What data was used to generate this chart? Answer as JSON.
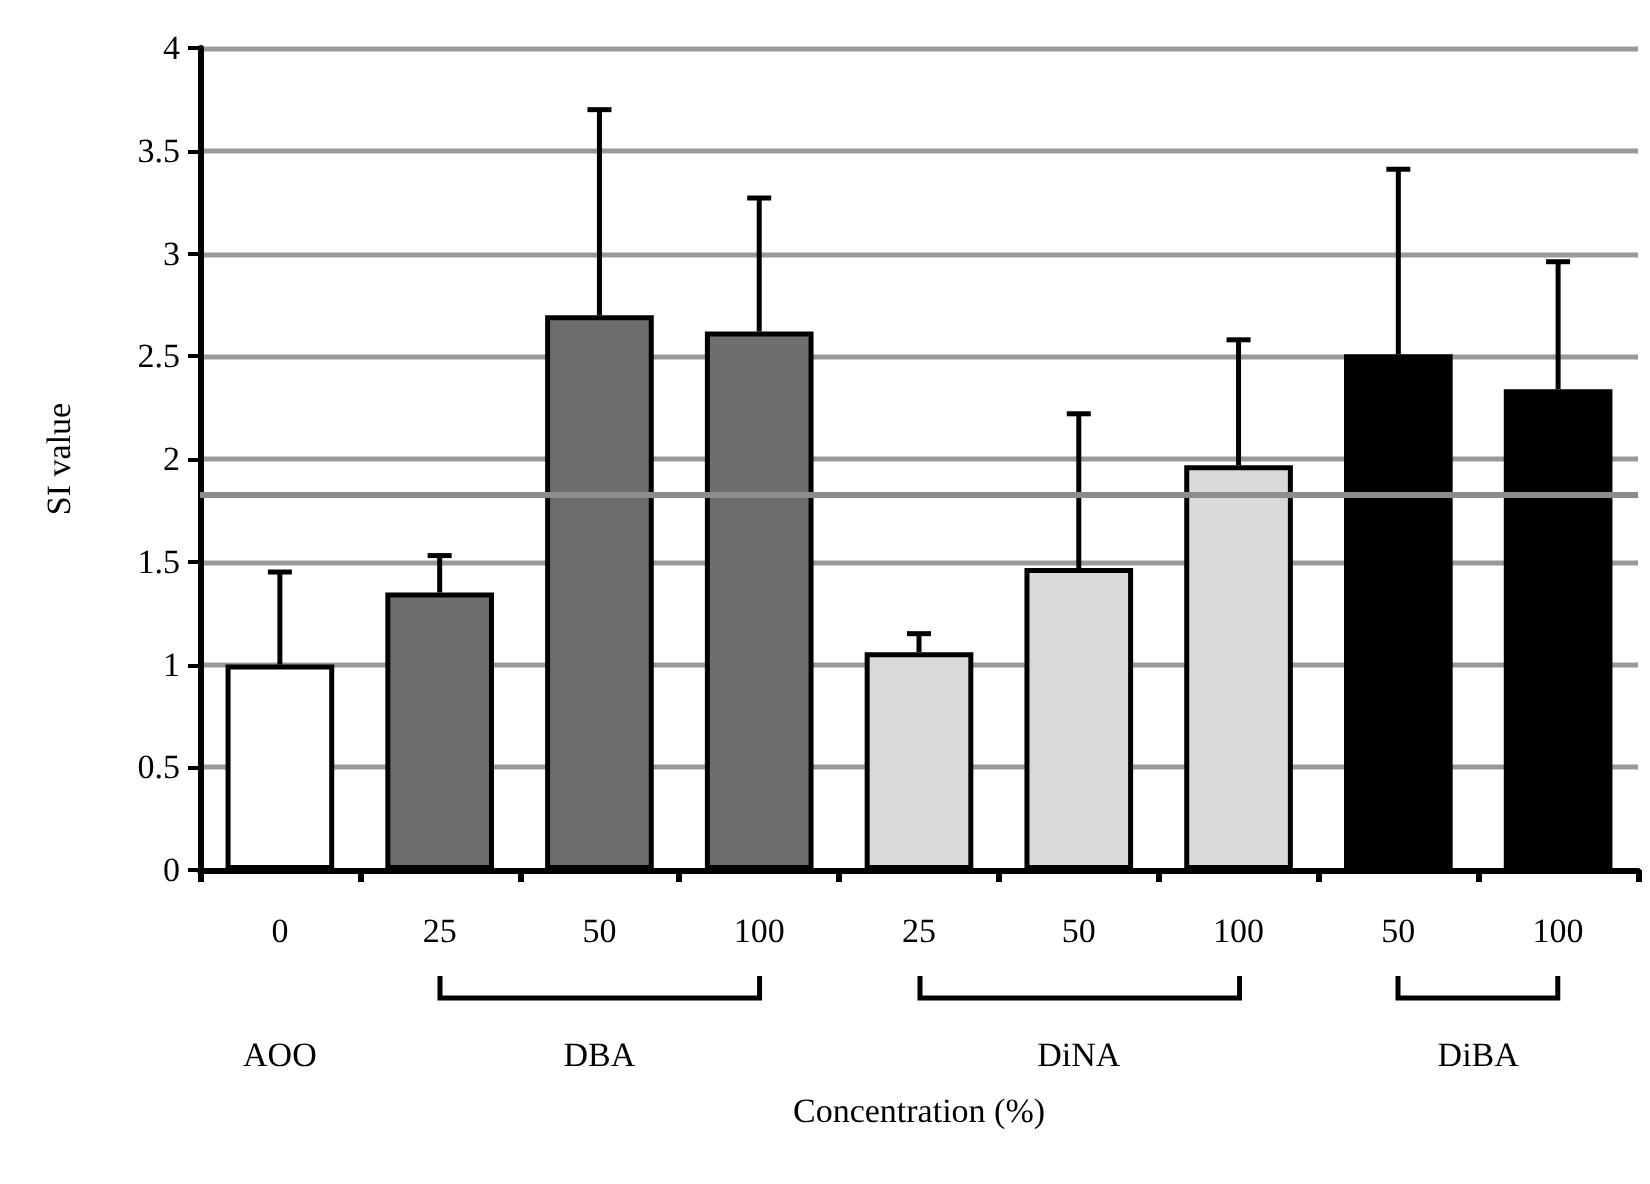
{
  "chart_data": {
    "type": "bar",
    "xlabel": "Concentration (%)",
    "ylabel": "SI value",
    "categories": [
      "0",
      "25",
      "50",
      "100",
      "25",
      "50",
      "100",
      "50",
      "100"
    ],
    "values": [
      1.0,
      1.35,
      2.7,
      2.62,
      1.06,
      1.47,
      1.97,
      2.51,
      2.34
    ],
    "colors": [
      "#ffffff",
      "#6e6e6e",
      "#6e6e6e",
      "#6e6e6e",
      "#d9d9d9",
      "#d9d9d9",
      "#d9d9d9",
      "#000000",
      "#000000"
    ],
    "errors": [
      [
        1.0,
        1.45
      ],
      [
        1.35,
        1.53
      ],
      [
        2.7,
        3.7
      ],
      [
        2.62,
        3.27
      ],
      [
        1.06,
        1.15
      ],
      [
        1.47,
        2.22
      ],
      [
        1.97,
        2.58
      ],
      [
        2.51,
        3.41
      ],
      [
        2.34,
        2.96
      ]
    ],
    "ylim": [
      0,
      4
    ],
    "yticks": [
      0,
      0.5,
      1,
      1.5,
      2,
      2.5,
      3,
      3.5,
      4
    ],
    "grid": "y",
    "ref_lines": [
      {
        "axis": "y",
        "value": 1.83,
        "color": "#8c8c8c"
      }
    ],
    "annotations": [
      "AOO",
      "DBA",
      "DiNA",
      "DiBA"
    ]
  }
}
